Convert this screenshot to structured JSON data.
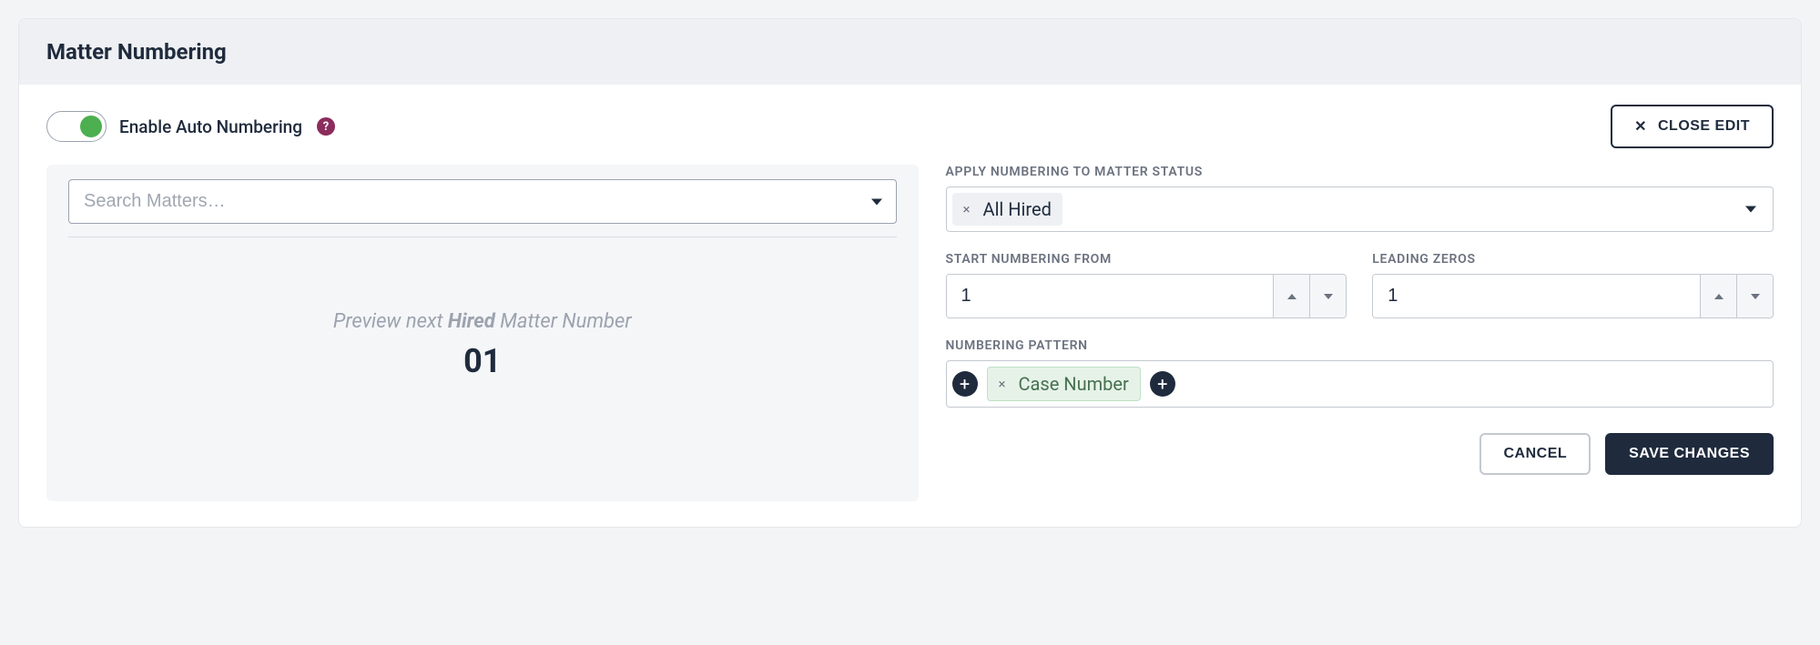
{
  "header": {
    "title": "Matter Numbering"
  },
  "toggle": {
    "label": "Enable Auto Numbering",
    "enabled": true
  },
  "closeEdit": {
    "label": "CLOSE EDIT"
  },
  "search": {
    "placeholder": "Search Matters…"
  },
  "preview": {
    "prefix": "Preview next ",
    "emphasis": "Hired",
    "suffix": " Matter Number",
    "value": "01"
  },
  "status": {
    "label": "APPLY NUMBERING TO MATTER STATUS",
    "selected": "All Hired"
  },
  "startFrom": {
    "label": "START NUMBERING FROM",
    "value": "1"
  },
  "leadingZeros": {
    "label": "LEADING ZEROS",
    "value": "1"
  },
  "pattern": {
    "label": "NUMBERING PATTERN",
    "tag": "Case Number"
  },
  "actions": {
    "cancel": "CANCEL",
    "save": "SAVE CHANGES"
  },
  "colors": {
    "primary_dark": "#1f2b3d",
    "toggle_green": "#4caf50",
    "help_purple": "#8b2d5c",
    "panel_bg": "#f5f6f8",
    "tag_green_bg": "#e6f2e8",
    "tag_gray_bg": "#eef0f3"
  }
}
